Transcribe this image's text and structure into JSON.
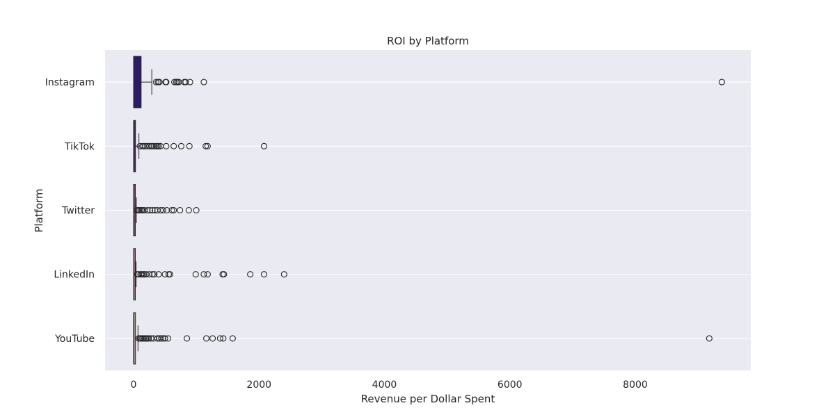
{
  "chart_data": {
    "type": "box",
    "orientation": "horizontal",
    "title": "ROI by Platform",
    "xlabel": "Revenue per Dollar Spent",
    "ylabel": "Platform",
    "xlim": [
      -450,
      9800
    ],
    "xticks": [
      0,
      2000,
      4000,
      6000,
      8000
    ],
    "xtick_labels": [
      "0",
      "2000",
      "4000",
      "6000",
      "8000"
    ],
    "grid": true,
    "style": {
      "plot_background": "#eaeaf2",
      "grid_color": "#ffffff",
      "text_color": "#262626",
      "line_color": "#262626"
    },
    "categories": [
      "Instagram",
      "TikTok",
      "Twitter",
      "LinkedIn",
      "YouTube"
    ],
    "boxes": [
      {
        "name": "Instagram",
        "color": "#2d1b69",
        "q1": 0,
        "median": 5,
        "q3": 120,
        "whisker_low": 0,
        "whisker_high": 290,
        "outliers": [
          360,
          390,
          410,
          510,
          520,
          650,
          680,
          700,
          720,
          810,
          830,
          900,
          1120,
          9380
        ]
      },
      {
        "name": "TikTok",
        "color": "#4a2a6e",
        "q1": 0,
        "median": 3,
        "q3": 30,
        "whisker_low": 0,
        "whisker_high": 85,
        "outliers": [
          100,
          140,
          160,
          190,
          220,
          250,
          280,
          300,
          330,
          360,
          380,
          400,
          430,
          520,
          640,
          760,
          890,
          1150,
          1180,
          2080
        ]
      },
      {
        "name": "Twitter",
        "color": "#7a3f6e",
        "q1": 0,
        "median": 2,
        "q3": 15,
        "whisker_low": 0,
        "whisker_high": 45,
        "outliers": [
          55,
          70,
          90,
          110,
          130,
          150,
          170,
          220,
          260,
          300,
          340,
          380,
          430,
          470,
          530,
          610,
          640,
          740,
          880,
          1000
        ]
      },
      {
        "name": "LinkedIn",
        "color": "#a86a74",
        "q1": 0,
        "median": 2,
        "q3": 15,
        "whisker_low": 0,
        "whisker_high": 40,
        "outliers": [
          60,
          80,
          110,
          130,
          150,
          170,
          200,
          250,
          300,
          330,
          400,
          500,
          560,
          580,
          990,
          1120,
          1180,
          1420,
          1440,
          1860,
          2080,
          2400
        ]
      },
      {
        "name": "YouTube",
        "color": "#e3bda8",
        "q1": 0,
        "median": 8,
        "q3": 30,
        "whisker_low": 0,
        "whisker_high": 70,
        "outliers": [
          80,
          100,
          120,
          140,
          160,
          180,
          200,
          220,
          240,
          280,
          320,
          380,
          410,
          440,
          470,
          500,
          550,
          850,
          1160,
          1260,
          1380,
          1430,
          1580,
          9180
        ]
      }
    ]
  }
}
